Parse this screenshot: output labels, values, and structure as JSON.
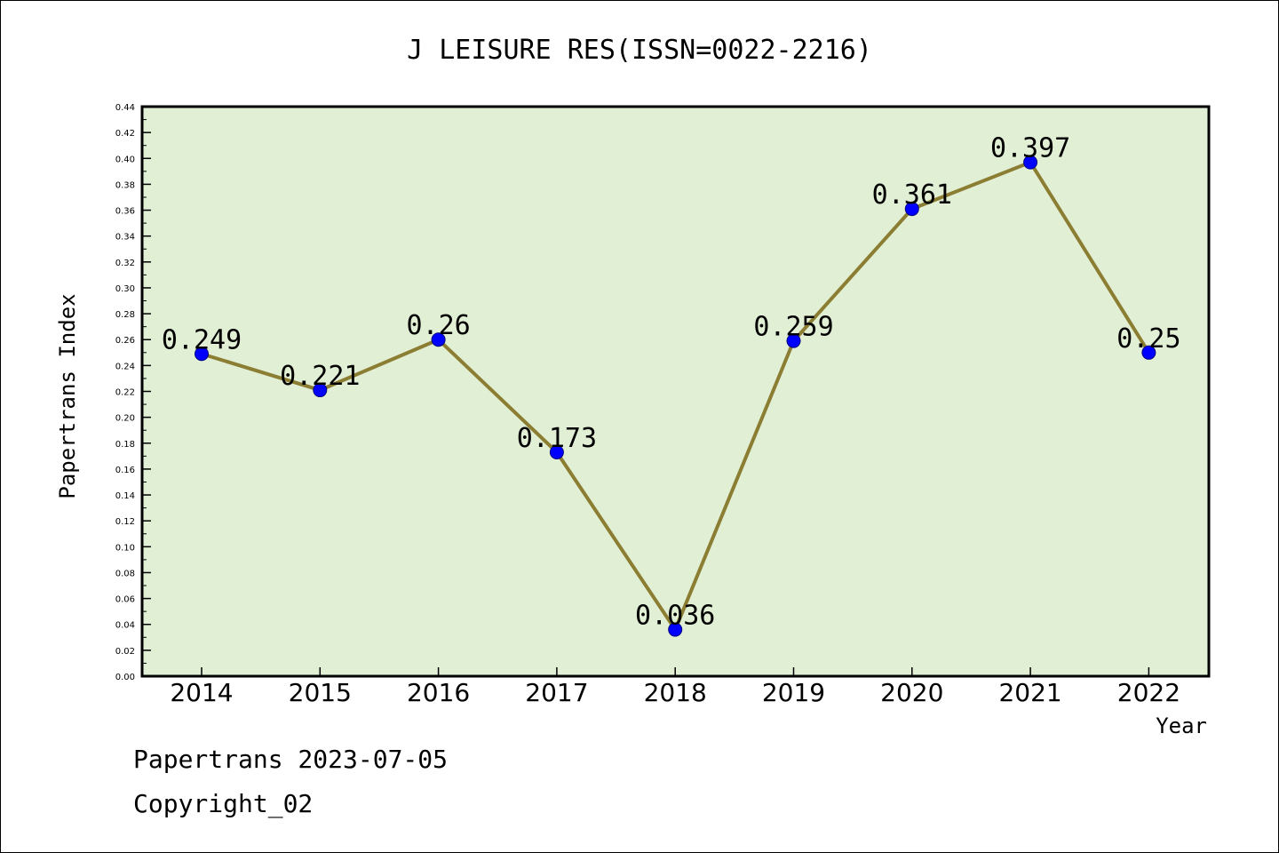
{
  "chart_data": {
    "type": "line",
    "title": "J LEISURE RES(ISSN=0022-2216)",
    "xlabel": "Year",
    "ylabel": "Papertrans Index",
    "categories": [
      "2014",
      "2015",
      "2016",
      "2017",
      "2018",
      "2019",
      "2020",
      "2021",
      "2022"
    ],
    "values": [
      0.249,
      0.221,
      0.26,
      0.173,
      0.036,
      0.259,
      0.361,
      0.397,
      0.25
    ],
    "data_labels": [
      "0.249",
      "0.221",
      "0.26",
      "0.173",
      "0.036",
      "0.259",
      "0.361",
      "0.397",
      "0.25"
    ],
    "ylim": [
      0,
      0.44
    ],
    "yticks": [
      "0.00",
      "0.02",
      "0.04",
      "0.06",
      "0.08",
      "0.10",
      "0.12",
      "0.14",
      "0.16",
      "0.18",
      "0.20",
      "0.22",
      "0.24",
      "0.26",
      "0.28",
      "0.30",
      "0.32",
      "0.34",
      "0.36",
      "0.38",
      "0.40",
      "0.42",
      "0.44"
    ],
    "grid": false,
    "legend": "none",
    "colors": {
      "plot_background": "#e1efd5",
      "line": "#8b7d32",
      "marker": "#0000ff",
      "axis": "#000000"
    }
  },
  "footer": {
    "line1": "Papertrans 2023-07-05",
    "line2": "Copyright_02"
  }
}
